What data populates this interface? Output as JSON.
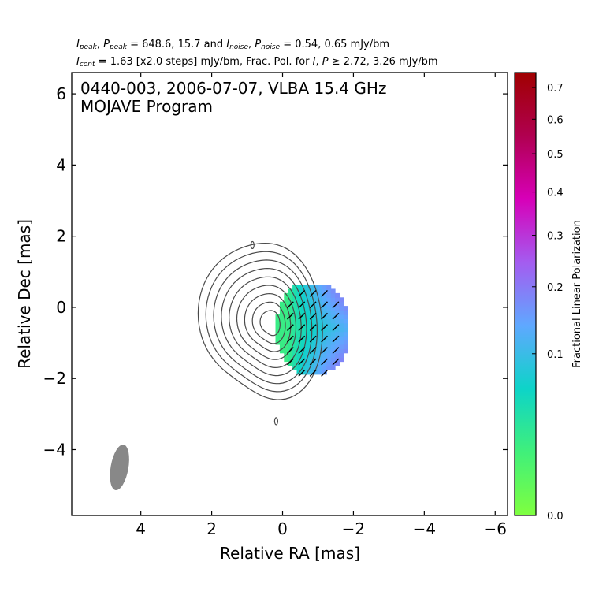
{
  "header": {
    "line1": {
      "i_peak_label": "I",
      "i_peak_sub": "peak",
      "p_peak_label": "P",
      "p_peak_sub": "peak",
      "peak_values": "= 648.6, 15.7 and",
      "i_noise_label": "I",
      "i_noise_sub": "noise",
      "p_noise_label": "P",
      "p_noise_sub": "noise",
      "noise_values": "= 0.54, 0.65 mJy/bm"
    },
    "line2": {
      "i_cont_label": "I",
      "i_cont_sub": "cont",
      "cont_text": "= 1.63 [x2.0 steps] mJy/bm, Frac. Pol. for",
      "i_label": "I",
      "p_label": "P",
      "threshold_text": "≥ 2.72, 3.26 mJy/bm"
    }
  },
  "chart_data": {
    "type": "heatmap",
    "title_line1": "0440-003, 2006-07-07, VLBA 15.4 GHz",
    "title_line2": "MOJAVE Program",
    "xlabel": "Relative RA [mas]",
    "ylabel": "Relative Dec [mas]",
    "xlim": [
      5.95,
      -6.35
    ],
    "ylim": [
      -5.85,
      6.6
    ],
    "x_ticks": [
      4,
      2,
      0,
      -2,
      -4,
      -6
    ],
    "x_tick_labels": [
      "4",
      "2",
      "0",
      "−2",
      "−4",
      "−6"
    ],
    "y_ticks": [
      -4,
      -2,
      0,
      2,
      4,
      6
    ],
    "y_tick_labels": [
      "−4",
      "−2",
      "0",
      "2",
      "4",
      "6"
    ],
    "grid": false,
    "contours": {
      "base_mJy_per_beam": 1.63,
      "step_factor": 2.0,
      "levels_mJy_per_beam": [
        1.63,
        3.26,
        6.52,
        13.04,
        26.08,
        52.16,
        104.32,
        208.64,
        417.28
      ],
      "main_component": {
        "center_ra": 0.55,
        "center_dec": -0.35,
        "outer_half_width_ra": 2.1,
        "outer_half_height_dec": 2.3
      },
      "isolated_features": [
        {
          "ra": 0.85,
          "dec": 1.75
        },
        {
          "ra": 0.18,
          "dec": -3.2
        }
      ]
    },
    "polarization": {
      "region": {
        "ra_min": -1.8,
        "ra_max": 0.2,
        "dec_min": -2.0,
        "dec_max": 0.55
      },
      "fpol_range": [
        0.02,
        0.25
      ],
      "evpa_deg": 45
    },
    "beam": {
      "ra": 4.6,
      "dec": -4.5,
      "major_mas": 1.3,
      "minor_mas": 0.5,
      "pa_deg": -10,
      "color": "#888888"
    },
    "colorbar": {
      "label": "Fractional Linear Polarization",
      "range": [
        0.0,
        0.75
      ],
      "ticks": [
        0.0,
        0.1,
        0.2,
        0.3,
        0.4,
        0.5,
        0.6,
        0.7
      ],
      "tick_labels": [
        "0.0",
        "0.1",
        "0.2",
        "0.3",
        "0.4",
        "0.5",
        "0.6",
        "0.7"
      ],
      "colors": [
        "#7fff3f",
        "#40f07a",
        "#0dd4c8",
        "#5fa8ff",
        "#a45cf0",
        "#d700b8",
        "#b00050",
        "#a00000"
      ]
    }
  }
}
